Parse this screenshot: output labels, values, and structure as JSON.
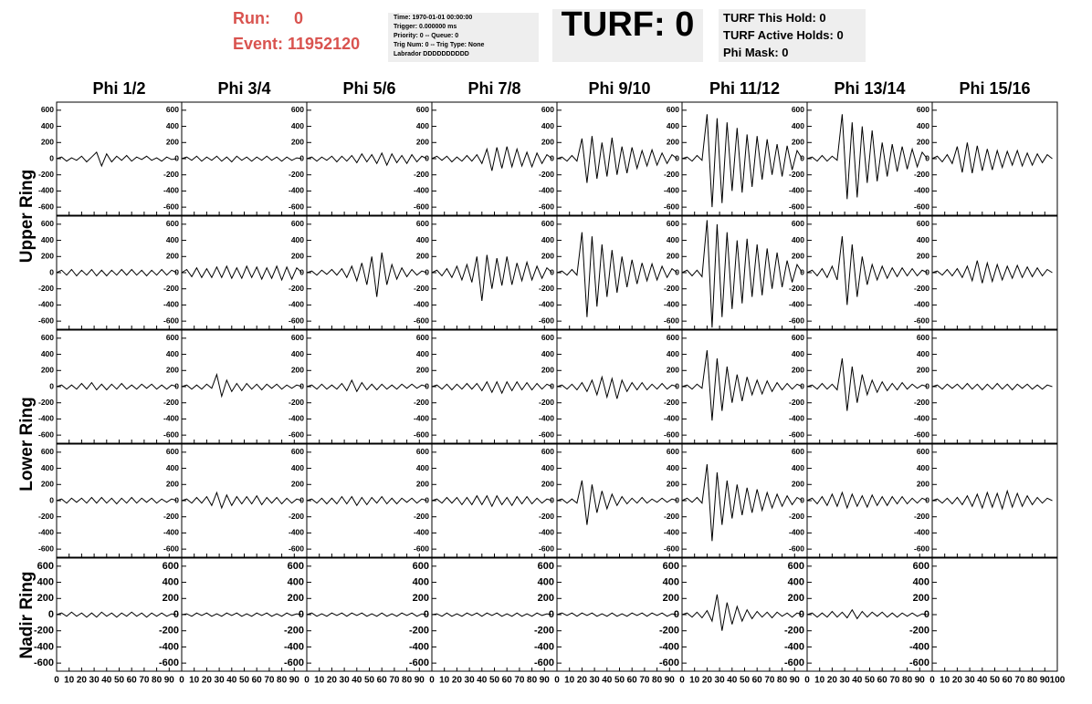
{
  "header": {
    "run_label": "Run:",
    "run": "0",
    "event_label": "Event:",
    "event": "11952120",
    "info": [
      "Time: 1970-01-01 00:00:00",
      "Trigger: 0.000000 ms",
      "Priority: 0 -- Queue: 0",
      "Trig Num: 0 -- Trig Type: None",
      "Labrador DDDDDDDDDD"
    ],
    "turf": "TURF: 0",
    "turf_info": [
      "TURF This Hold: 0",
      "TURF Active Holds: 0",
      "Phi Mask: 0"
    ]
  },
  "grid": {
    "columns": [
      "Phi 1/2",
      "Phi 3/4",
      "Phi 5/6",
      "Phi 7/8",
      "Phi 9/10",
      "Phi 11/12",
      "Phi 13/14",
      "Phi 15/16"
    ],
    "rows": [
      "Upper Ring",
      "Lower Ring",
      "Nadir Ring"
    ],
    "xlim": [
      0,
      100
    ],
    "xticks": [
      0,
      10,
      20,
      30,
      40,
      50,
      60,
      70,
      80,
      90,
      100
    ],
    "ylim": [
      -700,
      700
    ],
    "yticks": [
      -600,
      -400,
      -200,
      0,
      200,
      400,
      600
    ],
    "x": [
      0,
      4,
      8,
      12,
      16,
      20,
      24,
      28,
      32,
      36,
      40,
      44,
      48,
      52,
      56,
      60,
      64,
      68,
      72,
      76,
      80,
      84,
      88,
      92,
      96
    ],
    "panels": [
      [
        [
          0,
          20,
          -30,
          10,
          -20,
          30,
          -40,
          20,
          80,
          -90,
          60,
          -40,
          30,
          -20,
          40,
          -30,
          20,
          -10,
          30,
          -20,
          10,
          -30,
          20,
          -10,
          0
        ],
        [
          0,
          20,
          -20,
          30,
          -30,
          20,
          -20,
          30,
          -30,
          20,
          -40,
          30,
          -20,
          20,
          -30,
          20,
          -20,
          30,
          -20,
          20,
          -30,
          20,
          -20,
          10,
          0
        ],
        [
          0,
          20,
          -30,
          20,
          -20,
          30,
          -40,
          30,
          -30,
          40,
          -50,
          60,
          -40,
          50,
          -60,
          70,
          -80,
          60,
          -50,
          40,
          -60,
          50,
          -40,
          30,
          0
        ],
        [
          0,
          30,
          -20,
          30,
          -40,
          20,
          -30,
          40,
          -30,
          50,
          -60,
          120,
          -150,
          140,
          -120,
          150,
          -100,
          120,
          -90,
          80,
          -100,
          70,
          -60,
          50,
          0
        ],
        [
          0,
          20,
          -30,
          40,
          -30,
          250,
          -300,
          280,
          -250,
          200,
          -220,
          260,
          -200,
          150,
          -180,
          140,
          -120,
          100,
          -90,
          110,
          -80,
          70,
          -60,
          50,
          0
        ],
        [
          0,
          20,
          -30,
          40,
          -20,
          550,
          -600,
          500,
          -550,
          450,
          -400,
          380,
          -420,
          300,
          -350,
          280,
          -260,
          240,
          -200,
          180,
          -220,
          160,
          -140,
          100,
          0
        ],
        [
          0,
          20,
          -30,
          40,
          -30,
          30,
          -20,
          550,
          -500,
          450,
          -480,
          400,
          -300,
          350,
          -280,
          200,
          -220,
          180,
          -160,
          150,
          -130,
          120,
          -100,
          80,
          0
        ],
        [
          0,
          30,
          -40,
          50,
          -60,
          150,
          -170,
          200,
          -180,
          160,
          -150,
          120,
          -140,
          100,
          -110,
          90,
          -80,
          100,
          -90,
          70,
          -80,
          60,
          -50,
          50,
          0
        ]
      ],
      [
        [
          0,
          30,
          -30,
          40,
          -40,
          30,
          -30,
          40,
          -40,
          30,
          -40,
          30,
          -30,
          40,
          -30,
          40,
          -30,
          30,
          -40,
          30,
          -30,
          40,
          -30,
          30,
          0
        ],
        [
          0,
          40,
          -50,
          60,
          -60,
          50,
          -60,
          70,
          -60,
          80,
          -70,
          60,
          -70,
          80,
          -60,
          70,
          -80,
          60,
          -70,
          80,
          -90,
          70,
          -80,
          60,
          0
        ],
        [
          0,
          20,
          -30,
          30,
          -20,
          40,
          -30,
          50,
          -60,
          80,
          -100,
          120,
          -150,
          200,
          -300,
          250,
          -150,
          100,
          -80,
          60,
          -50,
          40,
          -30,
          20,
          0
        ],
        [
          0,
          30,
          -40,
          50,
          -60,
          80,
          -90,
          100,
          -120,
          200,
          -350,
          220,
          -200,
          180,
          -160,
          200,
          -150,
          120,
          -100,
          130,
          -90,
          80,
          -70,
          60,
          0
        ],
        [
          0,
          20,
          -30,
          40,
          -30,
          500,
          -550,
          450,
          -420,
          350,
          -300,
          280,
          -250,
          200,
          -180,
          160,
          -140,
          120,
          -100,
          110,
          -90,
          80,
          -60,
          50,
          0
        ],
        [
          0,
          30,
          -40,
          30,
          -50,
          650,
          -680,
          600,
          -550,
          500,
          -450,
          400,
          -380,
          420,
          -300,
          350,
          -280,
          300,
          -200,
          250,
          -180,
          150,
          -120,
          100,
          0
        ],
        [
          0,
          30,
          -40,
          50,
          -60,
          80,
          -90,
          450,
          -400,
          350,
          -300,
          200,
          -150,
          100,
          -90,
          80,
          -70,
          60,
          -50,
          60,
          -40,
          50,
          -40,
          30,
          0
        ],
        [
          0,
          20,
          -30,
          40,
          -40,
          50,
          -60,
          80,
          -100,
          150,
          -130,
          120,
          -110,
          100,
          -90,
          80,
          -70,
          90,
          -60,
          70,
          -50,
          60,
          -40,
          40,
          0
        ]
      ],
      [
        [
          0,
          20,
          -30,
          20,
          -30,
          40,
          -30,
          50,
          -40,
          30,
          -40,
          30,
          -30,
          40,
          -30,
          20,
          -30,
          30,
          -20,
          30,
          -30,
          20,
          -30,
          20,
          0
        ],
        [
          0,
          20,
          -30,
          20,
          -30,
          30,
          -20,
          150,
          -120,
          80,
          -60,
          40,
          -50,
          40,
          -30,
          30,
          -40,
          30,
          -20,
          30,
          -30,
          20,
          -20,
          20,
          0
        ],
        [
          0,
          20,
          -30,
          30,
          -30,
          20,
          -30,
          40,
          -50,
          80,
          -60,
          50,
          -40,
          30,
          -40,
          30,
          -30,
          20,
          -30,
          30,
          -20,
          30,
          -20,
          20,
          0
        ],
        [
          0,
          20,
          -30,
          30,
          -40,
          30,
          -30,
          40,
          -30,
          40,
          -50,
          60,
          -70,
          60,
          -80,
          60,
          -50,
          60,
          -40,
          50,
          -40,
          40,
          -30,
          30,
          0
        ],
        [
          0,
          20,
          -30,
          30,
          -40,
          50,
          -60,
          80,
          -100,
          120,
          -130,
          100,
          -150,
          80,
          -60,
          50,
          -40,
          50,
          -40,
          30,
          -30,
          40,
          -30,
          20,
          0
        ],
        [
          0,
          20,
          -30,
          30,
          -20,
          450,
          -420,
          350,
          -300,
          250,
          -200,
          150,
          -180,
          120,
          -100,
          80,
          -90,
          70,
          -60,
          50,
          -40,
          40,
          -30,
          30,
          0
        ],
        [
          0,
          20,
          -30,
          40,
          -30,
          30,
          -40,
          350,
          -300,
          250,
          -200,
          150,
          -100,
          80,
          -70,
          60,
          -50,
          40,
          -40,
          50,
          -30,
          30,
          -20,
          20,
          0
        ],
        [
          0,
          20,
          -30,
          30,
          -20,
          30,
          -30,
          40,
          -30,
          30,
          -40,
          30,
          -30,
          40,
          -30,
          30,
          -40,
          30,
          -20,
          30,
          -30,
          20,
          -30,
          20,
          0
        ]
      ],
      [
        [
          0,
          20,
          -30,
          30,
          -20,
          30,
          -30,
          40,
          -30,
          40,
          -30,
          30,
          -40,
          30,
          -30,
          40,
          -30,
          30,
          -20,
          30,
          -30,
          20,
          -20,
          20,
          0
        ],
        [
          0,
          20,
          -30,
          40,
          -30,
          50,
          -60,
          100,
          -90,
          70,
          -60,
          50,
          -40,
          50,
          -40,
          60,
          -50,
          40,
          -30,
          40,
          -40,
          30,
          -30,
          20,
          0
        ],
        [
          0,
          20,
          -30,
          30,
          -40,
          30,
          -40,
          50,
          -40,
          50,
          -60,
          40,
          -50,
          40,
          -30,
          50,
          -40,
          30,
          -40,
          30,
          -20,
          30,
          -30,
          20,
          0
        ],
        [
          0,
          20,
          -30,
          40,
          -30,
          40,
          -50,
          40,
          -50,
          60,
          -50,
          60,
          -70,
          60,
          -50,
          40,
          -60,
          50,
          -40,
          50,
          -40,
          30,
          -30,
          20,
          0
        ],
        [
          0,
          20,
          -30,
          20,
          -30,
          250,
          -300,
          200,
          -150,
          120,
          -100,
          80,
          -60,
          50,
          -40,
          30,
          -30,
          40,
          -30,
          20,
          -20,
          30,
          -20,
          20,
          0
        ],
        [
          0,
          30,
          -20,
          40,
          -30,
          450,
          -500,
          350,
          -300,
          250,
          -220,
          200,
          -180,
          160,
          -150,
          140,
          -120,
          100,
          -90,
          80,
          -70,
          60,
          -50,
          40,
          0
        ],
        [
          0,
          30,
          -40,
          50,
          -60,
          80,
          -70,
          100,
          -90,
          80,
          -70,
          60,
          -80,
          70,
          -60,
          50,
          -60,
          50,
          -40,
          50,
          -40,
          30,
          -30,
          30,
          0
        ],
        [
          0,
          20,
          -30,
          30,
          -40,
          40,
          -50,
          60,
          -70,
          80,
          -90,
          100,
          -80,
          90,
          -100,
          120,
          -80,
          90,
          -70,
          60,
          -50,
          40,
          -30,
          30,
          0
        ]
      ],
      [
        [
          0,
          20,
          -20,
          30,
          -20,
          20,
          -30,
          20,
          -30,
          30,
          -20,
          20,
          -30,
          20,
          -20,
          30,
          -20,
          20,
          -30,
          20,
          -20,
          20,
          -20,
          10,
          0
        ],
        [
          0,
          10,
          -20,
          20,
          -10,
          20,
          -20,
          10,
          -20,
          20,
          -10,
          20,
          -20,
          10,
          -20,
          20,
          -10,
          20,
          -20,
          10,
          -20,
          20,
          -10,
          10,
          0
        ],
        [
          0,
          20,
          -20,
          10,
          -20,
          20,
          -10,
          20,
          -20,
          20,
          -10,
          20,
          -20,
          10,
          -20,
          20,
          -20,
          10,
          -20,
          20,
          -10,
          20,
          -20,
          10,
          0
        ],
        [
          0,
          10,
          -20,
          20,
          -20,
          10,
          -20,
          20,
          -10,
          20,
          -20,
          20,
          -10,
          20,
          -20,
          10,
          -20,
          20,
          -20,
          10,
          -20,
          20,
          -10,
          10,
          0
        ],
        [
          0,
          20,
          -10,
          20,
          -20,
          20,
          -10,
          20,
          -20,
          10,
          -20,
          20,
          -20,
          10,
          -20,
          20,
          -10,
          20,
          -20,
          20,
          -10,
          20,
          -20,
          10,
          0
        ],
        [
          0,
          20,
          -30,
          30,
          -40,
          50,
          -80,
          250,
          -200,
          150,
          -120,
          100,
          -80,
          60,
          -50,
          40,
          -30,
          30,
          -40,
          30,
          -20,
          20,
          -30,
          20,
          0
        ],
        [
          0,
          20,
          -30,
          20,
          -30,
          40,
          -30,
          30,
          -40,
          60,
          -50,
          40,
          -30,
          30,
          -20,
          30,
          -30,
          20,
          -30,
          20,
          -20,
          20,
          -20,
          10,
          0
        ],
        null
      ]
    ]
  }
}
